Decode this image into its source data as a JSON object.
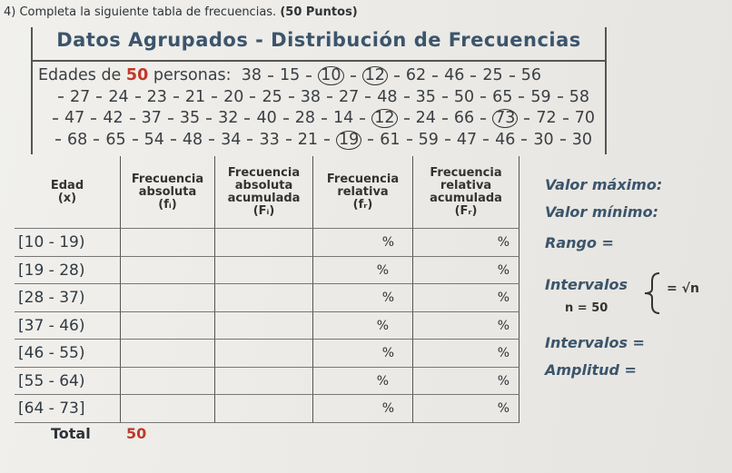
{
  "header": {
    "instruction": "4) Completa la siguiente tabla de frecuencias.",
    "points": "(50 Puntos)"
  },
  "box": {
    "title": "Datos Agrupados - Distribución de Frecuencias",
    "intro": {
      "before": "Edades de",
      "count": "50",
      "after": "personas:"
    },
    "lines": [
      [
        {
          "age": 38
        },
        {
          "age": 15
        },
        {
          "age": 10,
          "circled": true
        },
        {
          "age": 12,
          "circled": true
        },
        {
          "age": 62
        },
        {
          "age": 46
        },
        {
          "age": 25
        },
        {
          "age": 56
        }
      ],
      [
        {
          "age": 27
        },
        {
          "age": 24
        },
        {
          "age": 23
        },
        {
          "age": 21
        },
        {
          "age": 20
        },
        {
          "age": 25
        },
        {
          "age": 38
        },
        {
          "age": 27
        },
        {
          "age": 48
        },
        {
          "age": 35
        },
        {
          "age": 50
        },
        {
          "age": 65
        },
        {
          "age": 59
        },
        {
          "age": 58
        }
      ],
      [
        {
          "age": 47
        },
        {
          "age": 42
        },
        {
          "age": 37
        },
        {
          "age": 35
        },
        {
          "age": 32
        },
        {
          "age": 40
        },
        {
          "age": 28
        },
        {
          "age": 14
        },
        {
          "age": 12,
          "circled": true
        },
        {
          "age": 24
        },
        {
          "age": 66
        },
        {
          "age": 73,
          "circled": true
        },
        {
          "age": 72
        },
        {
          "age": 70
        }
      ],
      [
        {
          "age": 68
        },
        {
          "age": 65
        },
        {
          "age": 54
        },
        {
          "age": 48
        },
        {
          "age": 34
        },
        {
          "age": 33
        },
        {
          "age": 21
        },
        {
          "age": 19,
          "circled": true
        },
        {
          "age": 61
        },
        {
          "age": 59
        },
        {
          "age": 47
        },
        {
          "age": 46
        },
        {
          "age": 30
        },
        {
          "age": 30
        }
      ]
    ]
  },
  "table": {
    "headers": [
      [
        "Edad",
        "(x)"
      ],
      [
        "Frecuencia",
        "absoluta",
        "(fᵢ)"
      ],
      [
        "Frecuencia",
        "absoluta",
        "acumulada",
        "(Fᵢ)"
      ],
      [
        "Frecuencia",
        "relativa",
        "(fᵣ)"
      ],
      [
        "Frecuencia",
        "relativa",
        "acumulada",
        "(Fᵣ)"
      ]
    ],
    "rows": [
      {
        "interval": "[10 - 19)",
        "fr": "%",
        "Fr": "%"
      },
      {
        "interval": "[19 - 28)",
        "fr": "%",
        "Fr": "%"
      },
      {
        "interval": "[28 - 37)",
        "fr": "%",
        "Fr": "%"
      },
      {
        "interval": "[37 - 46)",
        "fr": "%",
        "Fr": "%"
      },
      {
        "interval": "[46 - 55)",
        "fr": "%",
        "Fr": "%"
      },
      {
        "interval": "[55 - 64)",
        "fr": "%",
        "Fr": "%"
      },
      {
        "interval": "[64 - 73]",
        "fr": "%",
        "Fr": "%"
      }
    ],
    "total": {
      "label": "Total",
      "value": "50"
    }
  },
  "side": {
    "max": "Valor máximo:",
    "min": "Valor mínimo:",
    "range": "Rango =",
    "intervals": "Intervalos",
    "n": "n = 50",
    "sqrt": "= √n",
    "intervals_eq": "Intervalos =",
    "amplitude": "Amplitud ="
  }
}
